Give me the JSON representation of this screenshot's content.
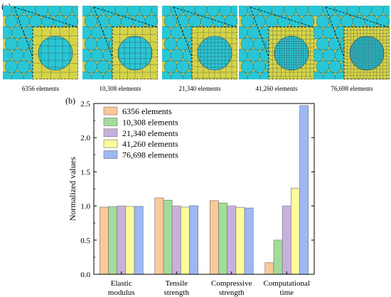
{
  "panel_a": {
    "label": "(a)",
    "captions": [
      "6356 elements",
      "10,308 elements",
      "21,340 elements",
      "41,260 elements",
      "76,698 elements"
    ]
  },
  "panel_b": {
    "label": "(b)"
  },
  "colors": {
    "mesh_matrix": "#d4d44a",
    "mesh_fiber": "#29c6d6",
    "mesh_line": "#3a3a3a",
    "series": [
      "#f9c998",
      "#a3dc9a",
      "#c8b0dc",
      "#fcfc9c",
      "#9db8f4"
    ]
  },
  "chart_data": {
    "type": "bar",
    "categories": [
      "Elastic modulus",
      "Tensile strength",
      "Compressive strength",
      "Computational time"
    ],
    "category_lines": [
      [
        "Elastic",
        "modulus"
      ],
      [
        "Tensile",
        "strength"
      ],
      [
        "Compressive",
        "strength"
      ],
      [
        "Computational",
        "time"
      ]
    ],
    "series": [
      {
        "name": "6356 elements",
        "values": [
          0.985,
          1.12,
          1.08,
          0.17
        ]
      },
      {
        "name": "10,308 elements",
        "values": [
          0.99,
          1.085,
          1.045,
          0.5
        ]
      },
      {
        "name": "21,340 elements",
        "values": [
          1.0,
          1.0,
          1.0,
          1.0
        ]
      },
      {
        "name": "41,260 elements",
        "values": [
          0.995,
          0.985,
          0.98,
          1.26
        ]
      },
      {
        "name": "76,698 elements",
        "values": [
          0.995,
          1.005,
          0.97,
          2.47
        ]
      }
    ],
    "ylabel": "Normalized values",
    "ylim": [
      0,
      2.5
    ],
    "yticks": [
      "0.0",
      "0.5",
      "1.0",
      "1.5",
      "2.0",
      "2.5"
    ],
    "legend_position": "top-left",
    "grid": false
  }
}
